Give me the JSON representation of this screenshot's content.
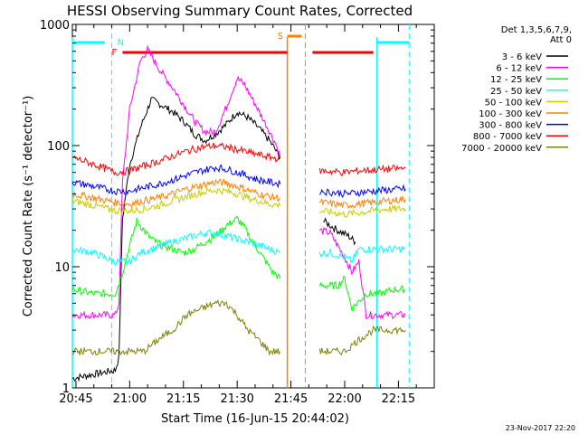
{
  "chart_data": {
    "type": "line",
    "title": "HESSI Observing Summary Count Rates, Corrected",
    "xlabel": "Start Time (16-Jun-15 20:44:02)",
    "ylabel": "Corrected Count Rate (s⁻¹ detector⁻¹)",
    "yscale": "log",
    "xlim": [
      "20:44",
      "22:25"
    ],
    "ylim": [
      1,
      1000
    ],
    "x_ticks": [
      "20:45",
      "21:00",
      "21:15",
      "21:30",
      "21:45",
      "22:00",
      "22:15"
    ],
    "y_ticks": [
      "1",
      "10",
      "100",
      "1000"
    ],
    "legend_position": "right",
    "legend_header": [
      "Det 1,3,5,6,7,9,",
      "Att 0"
    ],
    "footer_date": "23-Nov-2017 22:20",
    "series": [
      {
        "name": "3 - 6 keV",
        "color": "#000000",
        "points": [
          [
            "20:44",
            1.2
          ],
          [
            "20:56",
            1.4
          ],
          [
            "20:57",
            1.8
          ],
          [
            "20:58",
            25
          ],
          [
            "21:00",
            70
          ],
          [
            "21:03",
            140
          ],
          [
            "21:06",
            240
          ],
          [
            "21:09",
            215
          ],
          [
            "21:12",
            190
          ],
          [
            "21:15",
            160
          ],
          [
            "21:18",
            125
          ],
          [
            "21:21",
            110
          ],
          [
            "21:24",
            125
          ],
          [
            "21:27",
            150
          ],
          [
            "21:30",
            190
          ],
          [
            "21:33",
            170
          ],
          [
            "21:36",
            140
          ],
          [
            "21:39",
            110
          ],
          [
            "21:42",
            80
          ],
          [
            "21:50",
            null
          ],
          [
            "21:54",
            24
          ],
          [
            "21:58",
            20
          ],
          [
            "22:01",
            18
          ],
          [
            "22:03",
            16
          ]
        ]
      },
      {
        "name": "6 - 12 keV",
        "color": "#ff00ff",
        "points": [
          [
            "20:44",
            4
          ],
          [
            "20:56",
            4
          ],
          [
            "20:57",
            5
          ],
          [
            "20:58",
            50
          ],
          [
            "21:00",
            200
          ],
          [
            "21:03",
            500
          ],
          [
            "21:05",
            620
          ],
          [
            "21:08",
            440
          ],
          [
            "21:12",
            300
          ],
          [
            "21:15",
            220
          ],
          [
            "21:18",
            160
          ],
          [
            "21:21",
            130
          ],
          [
            "21:24",
            130
          ],
          [
            "21:27",
            210
          ],
          [
            "21:30",
            360
          ],
          [
            "21:32",
            320
          ],
          [
            "21:35",
            220
          ],
          [
            "21:38",
            150
          ],
          [
            "21:41",
            100
          ],
          [
            "21:42",
            80
          ],
          [
            "21:50",
            null
          ],
          [
            "21:53",
            20
          ],
          [
            "21:56",
            19
          ],
          [
            "21:58",
            15
          ],
          [
            "22:00",
            12
          ],
          [
            "22:02",
            9
          ],
          [
            "22:04",
            11
          ],
          [
            "22:06",
            4
          ],
          [
            "22:10",
            4
          ],
          [
            "22:14",
            4
          ],
          [
            "22:17",
            4
          ]
        ]
      },
      {
        "name": "12 - 25 keV",
        "color": "#00ff00",
        "points": [
          [
            "20:44",
            6.5
          ],
          [
            "20:50",
            6
          ],
          [
            "20:56",
            6
          ],
          [
            "20:58",
            9
          ],
          [
            "21:00",
            15
          ],
          [
            "21:02",
            24
          ],
          [
            "21:04",
            20
          ],
          [
            "21:06",
            17
          ],
          [
            "21:09",
            15
          ],
          [
            "21:12",
            14
          ],
          [
            "21:15",
            13
          ],
          [
            "21:18",
            14
          ],
          [
            "21:21",
            16
          ],
          [
            "21:24",
            18
          ],
          [
            "21:27",
            22
          ],
          [
            "21:30",
            25
          ],
          [
            "21:32",
            21
          ],
          [
            "21:35",
            15
          ],
          [
            "21:38",
            11
          ],
          [
            "21:40",
            9
          ],
          [
            "21:42",
            8
          ],
          [
            "21:50",
            null
          ],
          [
            "21:53",
            7
          ],
          [
            "21:56",
            7
          ],
          [
            "21:58",
            7
          ],
          [
            "22:00",
            8
          ],
          [
            "22:02",
            4.5
          ],
          [
            "22:06",
            6
          ],
          [
            "22:10",
            6
          ],
          [
            "22:14",
            6.5
          ],
          [
            "22:17",
            6.5
          ]
        ]
      },
      {
        "name": "25 - 50 keV",
        "color": "#00ffff",
        "points": [
          [
            "20:44",
            14
          ],
          [
            "20:50",
            13
          ],
          [
            "20:56",
            11
          ],
          [
            "21:00",
            11
          ],
          [
            "21:03",
            13
          ],
          [
            "21:06",
            14
          ],
          [
            "21:09",
            15
          ],
          [
            "21:12",
            16
          ],
          [
            "21:15",
            17
          ],
          [
            "21:18",
            18
          ],
          [
            "21:21",
            19
          ],
          [
            "21:24",
            19
          ],
          [
            "21:27",
            18
          ],
          [
            "21:30",
            17
          ],
          [
            "21:33",
            16
          ],
          [
            "21:36",
            15
          ],
          [
            "21:39",
            14
          ],
          [
            "21:42",
            13
          ],
          [
            "21:50",
            null
          ],
          [
            "21:53",
            13
          ],
          [
            "21:56",
            13
          ],
          [
            "22:00",
            12
          ],
          [
            "22:02",
            11
          ],
          [
            "22:04",
            14
          ],
          [
            "22:08",
            14
          ],
          [
            "22:12",
            14
          ],
          [
            "22:17",
            14
          ]
        ]
      },
      {
        "name": "50 - 100 keV",
        "color": "#cccc00",
        "points": [
          [
            "20:44",
            35
          ],
          [
            "20:50",
            32
          ],
          [
            "20:56",
            29
          ],
          [
            "21:00",
            29
          ],
          [
            "21:04",
            30
          ],
          [
            "21:08",
            32
          ],
          [
            "21:12",
            35
          ],
          [
            "21:16",
            38
          ],
          [
            "21:20",
            41
          ],
          [
            "21:24",
            43
          ],
          [
            "21:27",
            42
          ],
          [
            "21:30",
            40
          ],
          [
            "21:33",
            37
          ],
          [
            "21:36",
            35
          ],
          [
            "21:39",
            33
          ],
          [
            "21:42",
            32
          ],
          [
            "21:50",
            null
          ],
          [
            "21:53",
            29
          ],
          [
            "21:57",
            28
          ],
          [
            "22:00",
            27
          ],
          [
            "22:04",
            28
          ],
          [
            "22:08",
            29
          ],
          [
            "22:12",
            30
          ],
          [
            "22:17",
            30
          ]
        ]
      },
      {
        "name": "100 - 300 keV",
        "color": "#ff8000",
        "points": [
          [
            "20:44",
            40
          ],
          [
            "20:50",
            37
          ],
          [
            "20:56",
            34
          ],
          [
            "21:00",
            33
          ],
          [
            "21:04",
            35
          ],
          [
            "21:08",
            37
          ],
          [
            "21:12",
            40
          ],
          [
            "21:16",
            44
          ],
          [
            "21:20",
            47
          ],
          [
            "21:24",
            50
          ],
          [
            "21:27",
            49
          ],
          [
            "21:30",
            46
          ],
          [
            "21:33",
            43
          ],
          [
            "21:36",
            40
          ],
          [
            "21:39",
            38
          ],
          [
            "21:42",
            37
          ],
          [
            "21:50",
            null
          ],
          [
            "21:53",
            34
          ],
          [
            "21:57",
            33
          ],
          [
            "22:00",
            32
          ],
          [
            "22:04",
            33
          ],
          [
            "22:08",
            34
          ],
          [
            "22:12",
            35
          ],
          [
            "22:17",
            36
          ]
        ]
      },
      {
        "name": "300 - 800 keV",
        "color": "#0000ff",
        "points": [
          [
            "20:44",
            50
          ],
          [
            "20:50",
            46
          ],
          [
            "20:56",
            42
          ],
          [
            "21:00",
            42
          ],
          [
            "21:04",
            45
          ],
          [
            "21:08",
            48
          ],
          [
            "21:12",
            52
          ],
          [
            "21:16",
            57
          ],
          [
            "21:20",
            62
          ],
          [
            "21:24",
            66
          ],
          [
            "21:27",
            64
          ],
          [
            "21:30",
            60
          ],
          [
            "21:33",
            56
          ],
          [
            "21:36",
            52
          ],
          [
            "21:39",
            50
          ],
          [
            "21:42",
            48
          ],
          [
            "21:50",
            null
          ],
          [
            "21:53",
            42
          ],
          [
            "21:57",
            41
          ],
          [
            "22:00",
            40
          ],
          [
            "22:04",
            41
          ],
          [
            "22:08",
            42
          ],
          [
            "22:12",
            43
          ],
          [
            "22:17",
            44
          ]
        ]
      },
      {
        "name": "800 - 7000 keV",
        "color": "#ff0000",
        "points": [
          [
            "20:44",
            80
          ],
          [
            "20:50",
            70
          ],
          [
            "20:56",
            60
          ],
          [
            "21:00",
            62
          ],
          [
            "21:04",
            68
          ],
          [
            "21:08",
            74
          ],
          [
            "21:12",
            82
          ],
          [
            "21:16",
            90
          ],
          [
            "21:20",
            97
          ],
          [
            "21:24",
            100
          ],
          [
            "21:27",
            97
          ],
          [
            "21:30",
            93
          ],
          [
            "21:33",
            88
          ],
          [
            "21:36",
            84
          ],
          [
            "21:39",
            80
          ],
          [
            "21:42",
            78
          ],
          [
            "21:50",
            null
          ],
          [
            "21:53",
            62
          ],
          [
            "21:57",
            61
          ],
          [
            "22:00",
            60
          ],
          [
            "22:04",
            62
          ],
          [
            "22:08",
            63
          ],
          [
            "22:12",
            64
          ],
          [
            "22:17",
            65
          ]
        ]
      },
      {
        "name": "7000 - 20000 keV",
        "color": "#808000",
        "points": [
          [
            "20:44",
            2
          ],
          [
            "20:50",
            2
          ],
          [
            "20:56",
            2
          ],
          [
            "21:00",
            2
          ],
          [
            "21:04",
            2
          ],
          [
            "21:08",
            2.5
          ],
          [
            "21:12",
            3
          ],
          [
            "21:16",
            4
          ],
          [
            "21:20",
            4.5
          ],
          [
            "21:24",
            5
          ],
          [
            "21:27",
            5
          ],
          [
            "21:30",
            4
          ],
          [
            "21:33",
            3
          ],
          [
            "21:36",
            2.5
          ],
          [
            "21:39",
            2
          ],
          [
            "21:42",
            2
          ],
          [
            "21:50",
            null
          ],
          [
            "21:53",
            2
          ],
          [
            "21:57",
            2
          ],
          [
            "22:00",
            2
          ],
          [
            "22:04",
            2.5
          ],
          [
            "22:08",
            3
          ],
          [
            "22:12",
            3
          ],
          [
            "22:17",
            3
          ]
        ]
      }
    ],
    "annotations": {
      "night_flag": {
        "label": "N",
        "color": "#00ffff",
        "start": "20:55",
        "end": "22:09"
      },
      "saa_flag": {
        "label": "S",
        "color": "#ff8000",
        "start": "21:44",
        "end": "21:49"
      },
      "flare_flag": {
        "label": "F",
        "color": "#ff0000",
        "segments": [
          [
            "20:58",
            "21:44"
          ],
          [
            "21:51",
            "22:08"
          ]
        ]
      },
      "cyan_bars": [
        [
          "20:44",
          "20:53"
        ],
        [
          "22:09",
          "22:18"
        ]
      ]
    }
  }
}
